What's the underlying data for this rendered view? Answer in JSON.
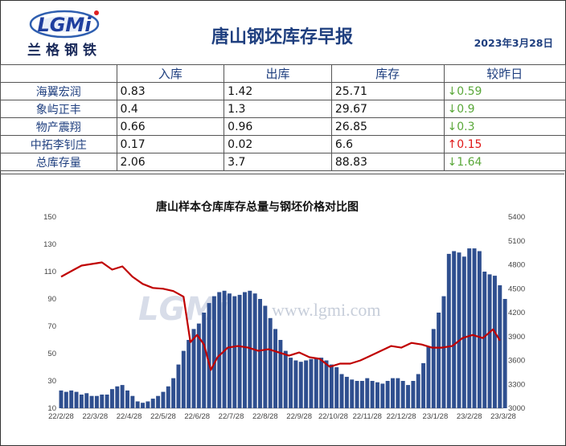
{
  "header": {
    "logo_text": "兰格钢铁",
    "title": "唐山钢坯库存早报",
    "date": "2023年3月28日"
  },
  "table": {
    "columns": [
      "",
      "入库",
      "出库",
      "库存",
      "较昨日"
    ],
    "rows": [
      {
        "name": "海翼宏润",
        "in": "0.83",
        "out": "1.42",
        "stock": "25.71",
        "change": "↓0.59",
        "dir": "down"
      },
      {
        "name": "象屿正丰",
        "in": "0.4",
        "out": "1.3",
        "stock": "29.67",
        "change": "↓0.9",
        "dir": "down"
      },
      {
        "name": "物产震翔",
        "in": "0.66",
        "out": "0.96",
        "stock": "26.85",
        "change": "↓0.3",
        "dir": "down"
      },
      {
        "name": "中拓李钊庄",
        "in": "0.17",
        "out": "0.02",
        "stock": "6.6",
        "change": "↑0.15",
        "dir": "up"
      },
      {
        "name": "总库存量",
        "in": "2.06",
        "out": "3.7",
        "stock": "88.83",
        "change": "↓1.64",
        "dir": "down"
      }
    ]
  },
  "watermark": "www.lgmi.com",
  "colors": {
    "bar": "#2f4f8f",
    "line": "#c00000",
    "header_text": "#1f3f7f",
    "down": "#5aa83a",
    "up": "#e01818"
  },
  "chart_data": {
    "type": "bar+line",
    "title": "唐山样本仓库库存总量与钢坯价格对比图",
    "x_ticks": [
      "22/2/28",
      "22/3/28",
      "22/4/28",
      "22/5/28",
      "22/6/28",
      "22/7/28",
      "22/8/28",
      "22/9/28",
      "22/10/28",
      "22/11/28",
      "22/12/28",
      "23/1/28",
      "23/2/28",
      "23/3/28"
    ],
    "y_left": {
      "min": 10,
      "max": 150,
      "ticks": [
        10,
        30,
        50,
        70,
        90,
        110,
        130,
        150
      ]
    },
    "y_right": {
      "min": 3000,
      "max": 5400,
      "ticks": [
        3000,
        3300,
        3600,
        3900,
        4200,
        4500,
        4800,
        5100,
        5400
      ]
    },
    "series": [
      {
        "kind": "bar",
        "axis": "left",
        "x_index": [
          0,
          0.15,
          0.3,
          0.45,
          0.6,
          0.75,
          0.9,
          1.05,
          1.2,
          1.35,
          1.5,
          1.65,
          1.8,
          1.95,
          2.1,
          2.25,
          2.4,
          2.55,
          2.7,
          2.85,
          3.0,
          3.15,
          3.3,
          3.45,
          3.6,
          3.75,
          3.9,
          4.05,
          4.2,
          4.35,
          4.5,
          4.65,
          4.8,
          4.95,
          5.1,
          5.25,
          5.4,
          5.55,
          5.7,
          5.85,
          6.0,
          6.15,
          6.3,
          6.45,
          6.6,
          6.75,
          6.9,
          7.05,
          7.2,
          7.35,
          7.5,
          7.65,
          7.8,
          7.95,
          8.1,
          8.25,
          8.4,
          8.55,
          8.7,
          8.85,
          9.0,
          9.15,
          9.3,
          9.45,
          9.6,
          9.75,
          9.9,
          10.05,
          10.2,
          10.35,
          10.5,
          10.65,
          10.8,
          10.95,
          11.1,
          11.25,
          11.4,
          11.55,
          11.7,
          11.85,
          12.0,
          12.15,
          12.3,
          12.45,
          12.6,
          12.75,
          12.9,
          13.05
        ],
        "values": [
          23,
          22,
          23,
          22,
          20,
          21,
          19,
          19,
          20,
          20,
          24,
          26,
          27,
          23,
          19,
          15,
          14,
          15,
          17,
          19,
          22,
          26,
          32,
          42,
          52,
          60,
          68,
          72,
          80,
          87,
          92,
          95,
          96,
          94,
          92,
          93,
          95,
          96,
          94,
          90,
          85,
          76,
          68,
          60,
          52,
          47,
          45,
          44,
          45,
          46,
          47,
          47,
          45,
          42,
          40,
          35,
          33,
          31,
          30,
          30,
          32,
          30,
          29,
          28,
          30,
          32,
          32,
          30,
          27,
          30,
          35,
          43,
          55,
          68,
          80,
          92,
          123,
          125,
          124,
          121,
          127,
          127,
          125,
          110,
          108,
          107,
          100,
          90
        ]
      },
      {
        "kind": "line",
        "axis": "right",
        "x_index": [
          0,
          0.3,
          0.6,
          0.9,
          1.2,
          1.5,
          1.8,
          2.1,
          2.4,
          2.7,
          3.0,
          3.3,
          3.6,
          3.8,
          4.0,
          4.2,
          4.4,
          4.6,
          4.9,
          5.2,
          5.5,
          5.8,
          6.1,
          6.4,
          6.7,
          7.0,
          7.3,
          7.6,
          7.9,
          8.2,
          8.5,
          8.8,
          9.1,
          9.4,
          9.7,
          10.0,
          10.3,
          10.6,
          10.9,
          11.2,
          11.5,
          11.8,
          12.1,
          12.4,
          12.7,
          12.9
        ],
        "values": [
          4650,
          4720,
          4790,
          4810,
          4830,
          4740,
          4780,
          4650,
          4560,
          4510,
          4500,
          4470,
          4400,
          3830,
          3920,
          3800,
          3480,
          3640,
          3760,
          3780,
          3760,
          3720,
          3740,
          3700,
          3660,
          3700,
          3640,
          3620,
          3520,
          3560,
          3560,
          3600,
          3660,
          3720,
          3780,
          3760,
          3820,
          3800,
          3760,
          3760,
          3780,
          3880,
          3920,
          3880,
          3990,
          3850
        ]
      }
    ]
  }
}
